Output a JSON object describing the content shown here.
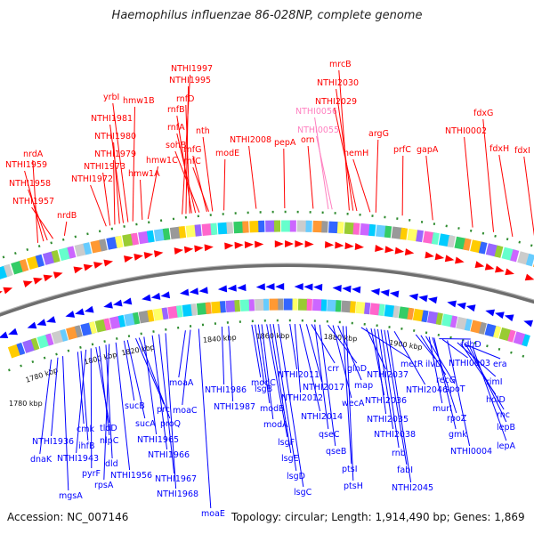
{
  "title": "Haemophilus influenzae 86-028NP, complete genome",
  "footer": {
    "accession": "Accession: NC_007146",
    "topology": "Topology: circular; Length: 1,914,490 bp; Genes: 1,869"
  },
  "colors": {
    "forward": "#ff0000",
    "reverse": "#0000ff",
    "rna": "#ff80c0",
    "backbone": "#808080",
    "tick": "#2e8b2e"
  },
  "scale": [
    "1780 kbp",
    "1800 kbp",
    "1820 kbp",
    "1840 kbp",
    "1860 kbp",
    "1880 kbp",
    "1900 kbp"
  ],
  "top_labels": [
    "nrdA",
    "NTHI1959",
    "NTHI1958",
    "NTHI1957",
    "nrdB",
    "NTHI1972",
    "NTHI1973",
    "NTHI1979",
    "NTHI1980",
    "NTHI1981",
    "yrbI",
    "hmw1B",
    "hmw1C",
    "hmw1A",
    "NTHI1997",
    "NTHI1995",
    "rnfD",
    "rnfB",
    "rnfA",
    "sohB",
    "rnfG",
    "rnfC",
    "nth",
    "modE",
    "NTHI2008",
    "pepA",
    "orn",
    "NTHI0056",
    "NTHI0055",
    "mrcB",
    "NTHI2030",
    "NTHI2029",
    "hemH",
    "argG",
    "prfC",
    "gapA",
    "NTHI0002",
    "fdxG",
    "fdxH",
    "fdxI"
  ],
  "bottom_labels": [
    "1780 kbp",
    "NTHI1936",
    "dnaK",
    "mgsA",
    "cmk",
    "ihfB",
    "NTHI1943",
    "pyrF",
    "tldD",
    "nlpC",
    "dld",
    "rpsA",
    "NTHI1956",
    "sucB",
    "sucA",
    "prc",
    "proQ",
    "NTHI1965",
    "NTHI1966",
    "NTHI1967",
    "NTHI1968",
    "moaA",
    "moaC",
    "moaE",
    "NTHI1986",
    "NTHI1987",
    "modC",
    "lsgB",
    "modB",
    "modA",
    "lsgF",
    "lsgE",
    "lsgD",
    "lsgC",
    "NTHI2011",
    "NTHI2012",
    "NTHI2014",
    "NTHI2017",
    "crr",
    "qseC",
    "qseB",
    "glnD",
    "wecA",
    "map",
    "ptsI",
    "ptsH",
    "metR",
    "NTHI2037",
    "NTHI2036",
    "NTHI2035",
    "NTHI2038",
    "rnb",
    "fabI",
    "NTHI2045",
    "NTHI2046",
    "ilvD",
    "recG",
    "spoT",
    "murI",
    "rpoZ",
    "gmk",
    "fdhD",
    "NTHI0003",
    "NTHI0004",
    "rimI",
    "holD",
    "rnc",
    "lepB",
    "lepA",
    "era"
  ]
}
